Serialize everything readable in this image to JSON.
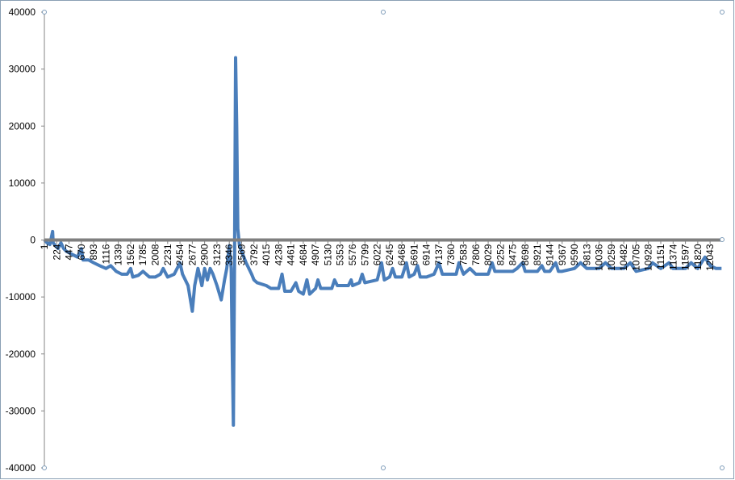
{
  "chart_data": {
    "type": "line",
    "x": [
      1,
      50,
      100,
      150,
      160,
      200,
      250,
      300,
      350,
      400,
      500,
      600,
      670,
      700,
      800,
      893,
      1000,
      1116,
      1200,
      1300,
      1400,
      1500,
      1562,
      1600,
      1700,
      1785,
      1900,
      2008,
      2100,
      2150,
      2231,
      2350,
      2454,
      2500,
      2600,
      2677,
      2720,
      2780,
      2850,
      2900,
      2950,
      3000,
      3050,
      3123,
      3200,
      3260,
      3300,
      3346,
      3380,
      3400,
      3420,
      3440,
      3460,
      3480,
      3500,
      3530,
      3569,
      3650,
      3750,
      3792,
      3850,
      4015,
      4100,
      4238,
      4300,
      4350,
      4461,
      4550,
      4600,
      4684,
      4750,
      4800,
      4907,
      4950,
      5000,
      5130,
      5200,
      5250,
      5300,
      5353,
      5500,
      5550,
      5576,
      5700,
      5750,
      5799,
      6022,
      6100,
      6150,
      6245,
      6300,
      6350,
      6468,
      6550,
      6600,
      6691,
      6750,
      6800,
      6914,
      7050,
      7137,
      7200,
      7360,
      7450,
      7500,
      7583,
      7700,
      7806,
      8029,
      8100,
      8150,
      8252,
      8475,
      8550,
      8650,
      8698,
      8921,
      9000,
      9050,
      9144,
      9250,
      9300,
      9367,
      9590,
      9700,
      9813,
      10036,
      10150,
      10259,
      10482,
      10600,
      10705,
      10928,
      11000,
      11151,
      11300,
      11374,
      11597,
      11700,
      11820,
      11950,
      12043,
      12150,
      12250
    ],
    "series": [
      {
        "color": "#4a7ebb",
        "values": [
          0,
          -500,
          -800,
          1500,
          -500,
          -1000,
          -1500,
          -500,
          -1500,
          -2000,
          -2500,
          -3000,
          -1500,
          -3500,
          -3500,
          -4000,
          -4500,
          -5000,
          -4500,
          -5500,
          -6000,
          -6000,
          -5000,
          -6500,
          -6200,
          -5500,
          -6500,
          -6500,
          -6000,
          -5000,
          -6500,
          -6000,
          -4000,
          -6000,
          -8000,
          -12500,
          -8000,
          -5000,
          -8000,
          -5000,
          -7000,
          -5000,
          -6000,
          -8000,
          -10500,
          -7000,
          -5000,
          -1000,
          -5000,
          -20000,
          -32500,
          -5000,
          32000,
          20000,
          2000,
          -1000,
          -2000,
          -4000,
          -6000,
          -7000,
          -7500,
          -8000,
          -8500,
          -8500,
          -6000,
          -9000,
          -9000,
          -7500,
          -9000,
          -9500,
          -7000,
          -9500,
          -8500,
          -7000,
          -8500,
          -8500,
          -8500,
          -7000,
          -8000,
          -8000,
          -8000,
          -7000,
          -8000,
          -7500,
          -6000,
          -7500,
          -7000,
          -4000,
          -7000,
          -6500,
          -5000,
          -6500,
          -6500,
          -4000,
          -6500,
          -6000,
          -4500,
          -6500,
          -6500,
          -6000,
          -4000,
          -6000,
          -6000,
          -6000,
          -4000,
          -6000,
          -5000,
          -6000,
          -6000,
          -4000,
          -5500,
          -5500,
          -5500,
          -5000,
          -4000,
          -5500,
          -5500,
          -4500,
          -5500,
          -5500,
          -4000,
          -5500,
          -5500,
          -5000,
          -4000,
          -5000,
          -5000,
          -4000,
          -5000,
          -5000,
          -4000,
          -5500,
          -5000,
          -4000,
          -5000,
          -4000,
          -5000,
          -5000,
          -4000,
          -5000,
          -3000,
          -4500,
          -5000,
          -5000
        ]
      }
    ],
    "xlim": [
      1,
      12260
    ],
    "xticks": [
      1,
      224,
      447,
      670,
      893,
      1116,
      1339,
      1562,
      1785,
      2008,
      2231,
      2454,
      2677,
      2900,
      3123,
      3346,
      3569,
      3792,
      4015,
      4238,
      4461,
      4684,
      4907,
      5130,
      5353,
      5576,
      5799,
      6022,
      6245,
      6468,
      6691,
      6914,
      7137,
      7360,
      7583,
      7806,
      8029,
      8252,
      8475,
      8698,
      8921,
      9144,
      9367,
      9590,
      9813,
      10036,
      10259,
      10482,
      10705,
      10928,
      11151,
      11374,
      11597,
      11820,
      12043
    ],
    "ylim": [
      -40000,
      40000
    ],
    "yticks": [
      -40000,
      -30000,
      -20000,
      -10000,
      0,
      10000,
      20000,
      30000,
      40000
    ]
  }
}
